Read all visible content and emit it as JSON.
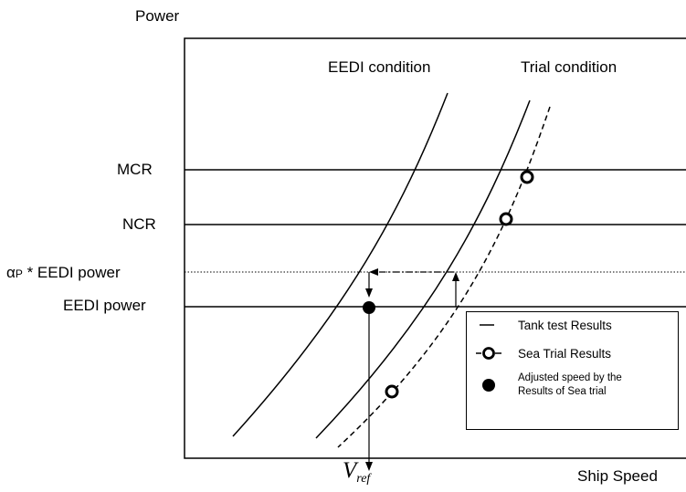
{
  "axes": {
    "y_label": "Power",
    "x_label": "Ship Speed"
  },
  "curve_labels": {
    "eedi": "EEDI condition",
    "trial": "Trial condition"
  },
  "power_levels": {
    "mcr": "MCR",
    "ncr": "NCR",
    "alpha_symbol": "α",
    "alpha_subscript": "P",
    "alpha_rest": " * EEDI power",
    "eedi_power": "EEDI power"
  },
  "vref": {
    "symbol": "V",
    "subscript": "ref"
  },
  "legend": {
    "tank": "Tank test Results",
    "sea": "Sea Trial Results",
    "adjusted_line1": "Adjusted speed by the",
    "adjusted_line2": "Results of Sea trial"
  }
}
